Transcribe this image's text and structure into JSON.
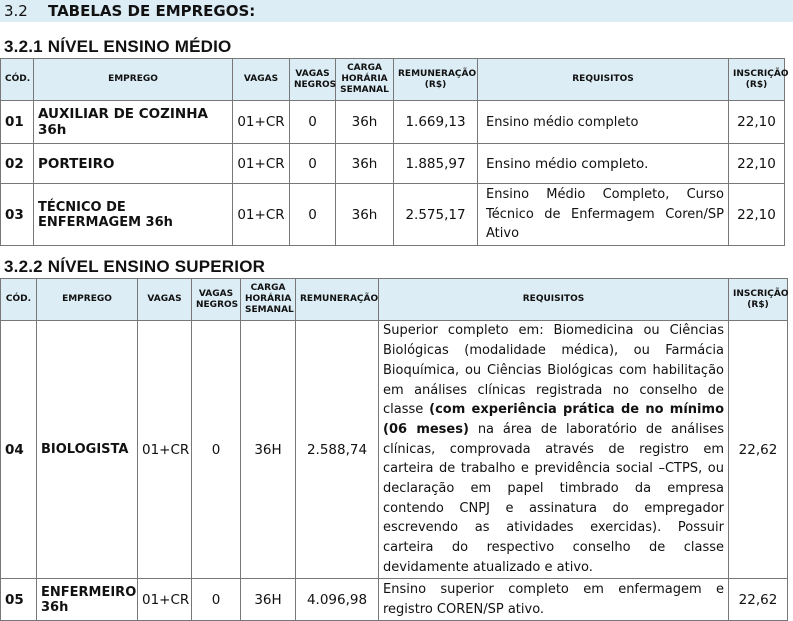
{
  "section": {
    "number": "3.2",
    "title": "TABELAS DE EMPREGOS:"
  },
  "medio": {
    "heading": "3.2.1  NÍVEL ENSINO MÉDIO",
    "headers": [
      "CÓD.",
      "EMPREGO",
      "VAGAS",
      "VAGAS NEGROS",
      "CARGA HORÁRIA SEMANAL",
      "REMUNERAÇÃO (R$)",
      "REQUISITOS",
      "INSCRIÇÃO (R$)"
    ],
    "rows": [
      [
        "01",
        "AUXILIAR DE COZINHA 36h",
        "01+CR",
        "0",
        "36h",
        "1.669,13",
        "Ensino médio completo",
        "22,10"
      ],
      [
        "02",
        "PORTEIRO",
        "01+CR",
        "0",
        "36h",
        "1.885,97",
        "Ensino médio completo.",
        "22,10"
      ],
      [
        "03",
        "TÉCNICO DE ENFERMAGEM 36h",
        "01+CR",
        "0",
        "36h",
        "2.575,17",
        "Ensino Médio Completo, Curso Técnico de Enfermagem Coren/SP Ativo",
        "22,10"
      ]
    ]
  },
  "superior": {
    "heading": "3.2.2  NÍVEL ENSINO SUPERIOR",
    "headers": [
      "CÓD.",
      "EMPREGO",
      "VAGAS",
      "VAGAS NEGROS",
      "CARGA HORÁRIA SEMANAL",
      "REMUNERAÇÃO",
      "REQUISITOS",
      "INSCRIÇÃO (R$)"
    ],
    "rows": [
      {
        "cod": "04",
        "emprego": "BIOLOGISTA",
        "vagas": "01+CR",
        "negros": "0",
        "carga": "36H",
        "remuneracao": "2.588,74",
        "req_pre": "Superior completo em: Biomedicina ou Ciências Biológicas (modalidade médica), ou Farmácia Bioquímica, ou Ciências Biológicas com habilitação em análises clínicas registrada no conselho de classe ",
        "req_bold": "(com experiência prática de no mínimo (06 meses)",
        "req_post": " na área de laboratório de análises clínicas, comprovada através de registro em carteira de trabalho e previdência social –CTPS, ou declaração em papel timbrado da empresa contendo CNPJ e assinatura do empregador escrevendo as atividades exercidas). Possuir carteira do respectivo conselho de classe devidamente atualizado e ativo.",
        "inscricao": "22,62"
      },
      {
        "cod": "05",
        "emprego": "ENFERMEIRO 36h",
        "vagas": "01+CR",
        "negros": "0",
        "carga": "36H",
        "remuneracao": "4.096,98",
        "req_pre": "Ensino superior completo em enfermagem e registro COREN/SP ativo.",
        "req_bold": "",
        "req_post": "",
        "inscricao": "22,62"
      }
    ]
  }
}
